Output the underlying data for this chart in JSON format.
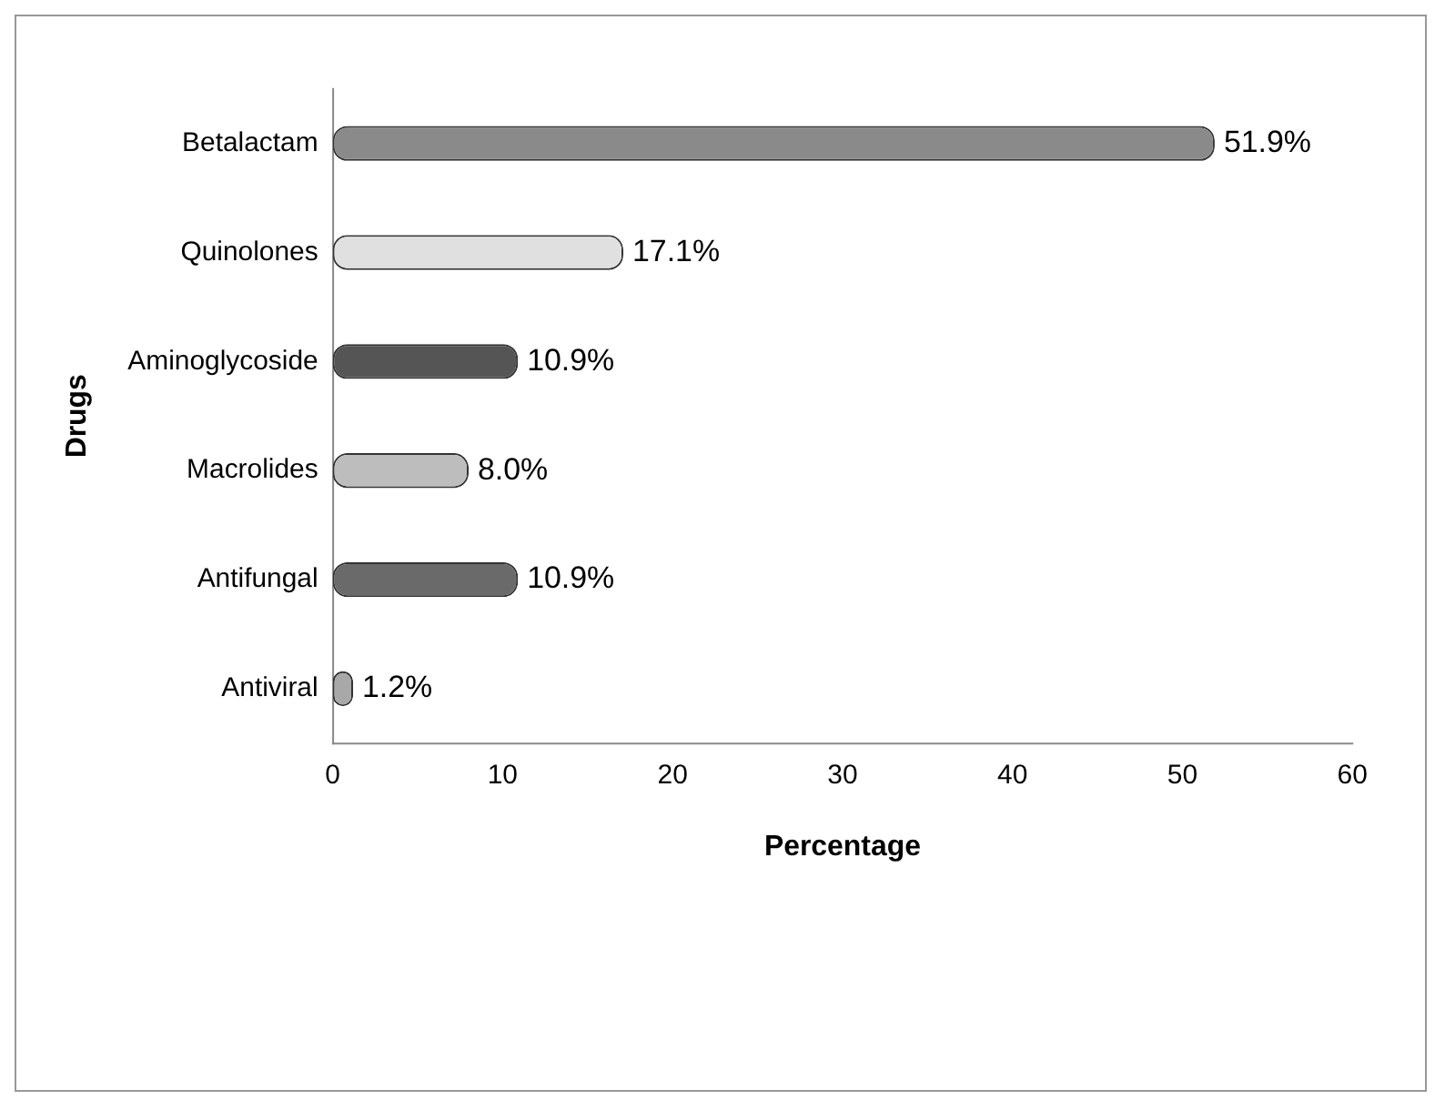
{
  "chart_data": {
    "type": "bar",
    "orientation": "horizontal",
    "xlabel": "Percentage",
    "ylabel": "Drugs",
    "categories": [
      "Betalactam",
      "Quinolones",
      "Aminoglycoside",
      "Macrolides",
      "Antifungal",
      "Antiviral"
    ],
    "values": [
      51.9,
      17.1,
      10.9,
      8.0,
      10.9,
      1.2
    ],
    "value_labels": [
      "51.9%",
      "17.1%",
      "10.9%",
      "8.0%",
      "10.9%",
      "1.2%"
    ],
    "colors": [
      "#8a8a8a",
      "#e0e0e0",
      "#555555",
      "#bdbdbd",
      "#6a6a6a",
      "#a8a8a8"
    ],
    "xlim": [
      0,
      60
    ],
    "xticks": [
      0,
      10,
      20,
      30,
      40,
      50,
      60
    ],
    "grid": false,
    "legend": false
  }
}
